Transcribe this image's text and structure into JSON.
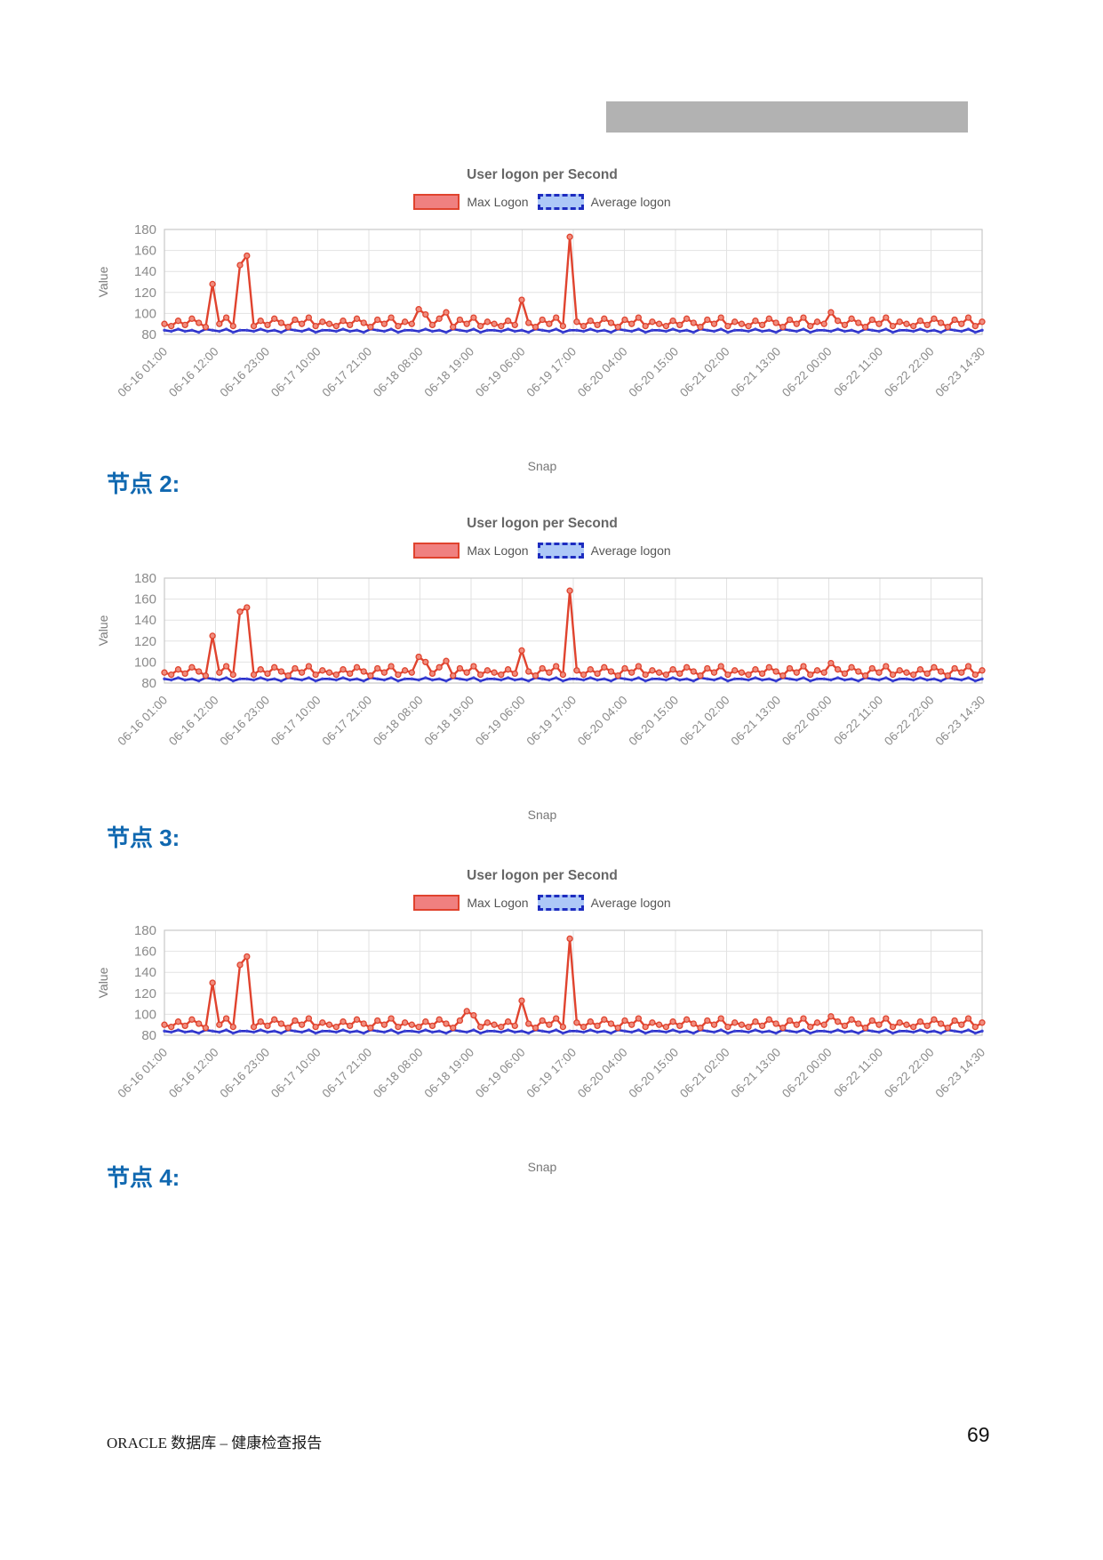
{
  "page": {
    "footer_left": "ORACLE 数据库 – 健康检查报告",
    "page_number": "69"
  },
  "redaction_bar": {
    "color": "#b2b2b2"
  },
  "sections": [
    {
      "label": "节点 2:"
    },
    {
      "label": "节点 3:"
    },
    {
      "label": "节点 4:"
    }
  ],
  "colors": {
    "max_line": "#e0432e",
    "max_marker_fill": "#f08d7e",
    "avg_line": "#2b2fc8",
    "header_blue": "#1068b0",
    "grid": "#e2e2e2",
    "redaction_gray": "#b2b2b2"
  },
  "chart_data": [
    {
      "type": "line",
      "title": "User logon per Second",
      "xlabel": "Snap",
      "ylabel": "Value",
      "ylim": [
        80,
        180
      ],
      "y_ticks": [
        180,
        160,
        140,
        120,
        100,
        80
      ],
      "grid": true,
      "legend_position": "top",
      "x_ticks": [
        "06-16 01:00",
        "06-16 12:00",
        "06-16 23:00",
        "06-17 10:00",
        "06-17 21:00",
        "06-18 08:00",
        "06-18 19:00",
        "06-19 06:00",
        "06-19 17:00",
        "06-20 04:00",
        "06-20 15:00",
        "06-21 02:00",
        "06-21 13:00",
        "06-22 00:00",
        "06-22 11:00",
        "06-22 22:00",
        "06-23 14:30"
      ],
      "series": [
        {
          "name": "Max Logon",
          "line_color": "#e0432e",
          "line_width": 2.4,
          "marker_radius": 3,
          "marker_fill": "#f08d7e",
          "marker_stroke": "#e0432e",
          "values": [
            90,
            88,
            93,
            89,
            95,
            91,
            87,
            128,
            90,
            96,
            88,
            146,
            155,
            88,
            93,
            89,
            95,
            91,
            87,
            94,
            90,
            96,
            88,
            92,
            90,
            88,
            93,
            89,
            95,
            91,
            87,
            94,
            90,
            96,
            88,
            92,
            90,
            104,
            99,
            89,
            95,
            101,
            87,
            94,
            90,
            96,
            88,
            92,
            90,
            88,
            93,
            89,
            113,
            91,
            87,
            94,
            90,
            96,
            88,
            173,
            92,
            88,
            93,
            89,
            95,
            91,
            87,
            94,
            90,
            96,
            88,
            92,
            90,
            88,
            93,
            89,
            95,
            91,
            87,
            94,
            90,
            96,
            88,
            92,
            90,
            88,
            93,
            89,
            95,
            91,
            87,
            94,
            90,
            96,
            88,
            92,
            90,
            101,
            93,
            89,
            95,
            91,
            87,
            94,
            90,
            96,
            88,
            92,
            90,
            88,
            93,
            89,
            95,
            91,
            87,
            94,
            90,
            96,
            88,
            92
          ]
        },
        {
          "name": "Average logon",
          "line_color": "#2b2fc8",
          "line_width": 2.6,
          "marker_radius": 1.7,
          "marker_fill": "#3d44d6",
          "marker_stroke": "none",
          "values": [
            84,
            83,
            85,
            83,
            84,
            82,
            85,
            84,
            83,
            85,
            82,
            84,
            84,
            83,
            85,
            83,
            84,
            82,
            85,
            84,
            83,
            85,
            82,
            84,
            84,
            83,
            85,
            83,
            84,
            82,
            85,
            84,
            83,
            85,
            82,
            84,
            84,
            83,
            85,
            83,
            84,
            82,
            85,
            84,
            83,
            85,
            82,
            84,
            84,
            83,
            85,
            83,
            84,
            82,
            85,
            84,
            83,
            85,
            82,
            84,
            84,
            83,
            85,
            83,
            84,
            82,
            85,
            84,
            83,
            85,
            82,
            84,
            84,
            83,
            85,
            83,
            84,
            82,
            85,
            84,
            83,
            85,
            82,
            84,
            84,
            83,
            85,
            83,
            84,
            82,
            85,
            84,
            83,
            85,
            82,
            84,
            84,
            83,
            85,
            83,
            84,
            82,
            85,
            84,
            83,
            85,
            82,
            84,
            84,
            83,
            85,
            83,
            84,
            82,
            85,
            84,
            83,
            85,
            82,
            84
          ]
        }
      ]
    },
    {
      "type": "line",
      "title": "User logon per Second",
      "xlabel": "Snap",
      "ylabel": "Value",
      "ylim": [
        80,
        180
      ],
      "y_ticks": [
        180,
        160,
        140,
        120,
        100,
        80
      ],
      "grid": true,
      "legend_position": "top",
      "x_ticks": [
        "06-16 01:00",
        "06-16 12:00",
        "06-16 23:00",
        "06-17 10:00",
        "06-17 21:00",
        "06-18 08:00",
        "06-18 19:00",
        "06-19 06:00",
        "06-19 17:00",
        "06-20 04:00",
        "06-20 15:00",
        "06-21 02:00",
        "06-21 13:00",
        "06-22 00:00",
        "06-22 11:00",
        "06-22 22:00",
        "06-23 14:30"
      ],
      "series": [
        {
          "name": "Max Logon",
          "line_color": "#e0432e",
          "line_width": 2.4,
          "marker_radius": 3,
          "marker_fill": "#f08d7e",
          "marker_stroke": "#e0432e",
          "values": [
            90,
            88,
            93,
            89,
            95,
            91,
            87,
            125,
            90,
            96,
            88,
            148,
            152,
            88,
            93,
            89,
            95,
            91,
            87,
            94,
            90,
            96,
            88,
            92,
            90,
            88,
            93,
            89,
            95,
            91,
            87,
            94,
            90,
            96,
            88,
            92,
            90,
            105,
            100,
            89,
            95,
            101,
            87,
            94,
            90,
            96,
            88,
            92,
            90,
            88,
            93,
            89,
            111,
            91,
            87,
            94,
            90,
            96,
            88,
            168,
            92,
            88,
            93,
            89,
            95,
            91,
            87,
            94,
            90,
            96,
            88,
            92,
            90,
            88,
            93,
            89,
            95,
            91,
            87,
            94,
            90,
            96,
            88,
            92,
            90,
            88,
            93,
            89,
            95,
            91,
            87,
            94,
            90,
            96,
            88,
            92,
            90,
            99,
            93,
            89,
            95,
            91,
            87,
            94,
            90,
            96,
            88,
            92,
            90,
            88,
            93,
            89,
            95,
            91,
            87,
            94,
            90,
            96,
            88,
            92
          ]
        },
        {
          "name": "Average logon",
          "line_color": "#2b2fc8",
          "line_width": 2.6,
          "marker_radius": 1.7,
          "marker_fill": "#3d44d6",
          "marker_stroke": "none",
          "values": [
            84,
            83,
            85,
            83,
            84,
            82,
            85,
            84,
            83,
            85,
            82,
            84,
            84,
            83,
            85,
            83,
            84,
            82,
            85,
            84,
            83,
            85,
            82,
            84,
            84,
            83,
            85,
            83,
            84,
            82,
            85,
            84,
            83,
            85,
            82,
            84,
            84,
            83,
            85,
            83,
            84,
            82,
            85,
            84,
            83,
            85,
            82,
            84,
            84,
            83,
            85,
            83,
            84,
            82,
            85,
            84,
            83,
            85,
            82,
            84,
            84,
            83,
            85,
            83,
            84,
            82,
            85,
            84,
            83,
            85,
            82,
            84,
            84,
            83,
            85,
            83,
            84,
            82,
            85,
            84,
            83,
            85,
            82,
            84,
            84,
            83,
            85,
            83,
            84,
            82,
            85,
            84,
            83,
            85,
            82,
            84,
            84,
            83,
            85,
            83,
            84,
            82,
            85,
            84,
            83,
            85,
            82,
            84,
            84,
            83,
            85,
            83,
            84,
            82,
            85,
            84,
            83,
            85,
            82,
            84
          ]
        }
      ]
    },
    {
      "type": "line",
      "title": "User logon per Second",
      "xlabel": "Snap",
      "ylabel": "Value",
      "ylim": [
        80,
        180
      ],
      "y_ticks": [
        180,
        160,
        140,
        120,
        100,
        80
      ],
      "grid": true,
      "legend_position": "top",
      "x_ticks": [
        "06-16 01:00",
        "06-16 12:00",
        "06-16 23:00",
        "06-17 10:00",
        "06-17 21:00",
        "06-18 08:00",
        "06-18 19:00",
        "06-19 06:00",
        "06-19 17:00",
        "06-20 04:00",
        "06-20 15:00",
        "06-21 02:00",
        "06-21 13:00",
        "06-22 00:00",
        "06-22 11:00",
        "06-22 22:00",
        "06-23 14:30"
      ],
      "series": [
        {
          "name": "Max Logon",
          "line_color": "#e0432e",
          "line_width": 2.4,
          "marker_radius": 3,
          "marker_fill": "#f08d7e",
          "marker_stroke": "#e0432e",
          "values": [
            90,
            88,
            93,
            89,
            95,
            91,
            87,
            130,
            90,
            96,
            88,
            147,
            155,
            88,
            93,
            89,
            95,
            91,
            87,
            94,
            90,
            96,
            88,
            92,
            90,
            88,
            93,
            89,
            95,
            91,
            87,
            94,
            90,
            96,
            88,
            92,
            90,
            88,
            93,
            89,
            95,
            91,
            87,
            94,
            103,
            99,
            88,
            92,
            90,
            88,
            93,
            89,
            113,
            91,
            87,
            94,
            90,
            96,
            88,
            172,
            92,
            88,
            93,
            89,
            95,
            91,
            87,
            94,
            90,
            96,
            88,
            92,
            90,
            88,
            93,
            89,
            95,
            91,
            87,
            94,
            90,
            96,
            88,
            92,
            90,
            88,
            93,
            89,
            95,
            91,
            87,
            94,
            90,
            96,
            88,
            92,
            90,
            98,
            93,
            89,
            95,
            91,
            87,
            94,
            90,
            96,
            88,
            92,
            90,
            88,
            93,
            89,
            95,
            91,
            87,
            94,
            90,
            96,
            88,
            92
          ]
        },
        {
          "name": "Average logon",
          "line_color": "#2b2fc8",
          "line_width": 2.6,
          "marker_radius": 1.7,
          "marker_fill": "#3d44d6",
          "marker_stroke": "none",
          "values": [
            84,
            83,
            85,
            83,
            84,
            82,
            85,
            84,
            83,
            85,
            82,
            84,
            84,
            83,
            85,
            83,
            84,
            82,
            85,
            84,
            83,
            85,
            82,
            84,
            84,
            83,
            85,
            83,
            84,
            82,
            85,
            84,
            83,
            85,
            82,
            84,
            84,
            83,
            85,
            83,
            84,
            82,
            85,
            84,
            83,
            85,
            82,
            84,
            84,
            83,
            85,
            83,
            84,
            82,
            85,
            84,
            83,
            85,
            82,
            84,
            84,
            83,
            85,
            83,
            84,
            82,
            85,
            84,
            83,
            85,
            82,
            84,
            84,
            83,
            85,
            83,
            84,
            82,
            85,
            84,
            83,
            85,
            82,
            84,
            84,
            83,
            85,
            83,
            84,
            82,
            85,
            84,
            83,
            85,
            82,
            84,
            84,
            83,
            85,
            83,
            84,
            82,
            85,
            84,
            83,
            85,
            82,
            84,
            84,
            83,
            85,
            83,
            84,
            82,
            85,
            84,
            83,
            85,
            82,
            84
          ]
        }
      ]
    }
  ]
}
